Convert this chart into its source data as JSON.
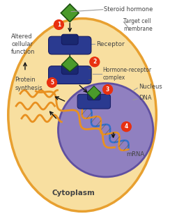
{
  "bg_color": "#FFFFFF",
  "cell_color": "#F8DFA0",
  "cell_outline": "#E8A030",
  "nucleus_color": "#9080C0",
  "nucleus_outline": "#6050A0",
  "receptor_color": "#2A3A90",
  "hormone_color": "#4A9A2B",
  "step_circle_color": "#E83010",
  "step_text_color": "#FFFFFF",
  "dna_color1": "#3070CC",
  "dna_color2": "#E89020",
  "mrna_color": "#E89020",
  "arrow_color": "#111111",
  "label_color": "#444444",
  "labels": {
    "steroid_hormone": "Steroid hormone",
    "target_cell": "Target cell\nmembrane",
    "receptor": "Receptor",
    "hormone_receptor": "Hormone-receptor\ncomplex",
    "nucleus": "Nucleus",
    "dna": "DNA",
    "mrna": "mRNA",
    "cytoplasm": "Cytoplasm",
    "altered": "Altered\ncellular\nfunction",
    "protein": "Protein\nsynthesis"
  }
}
